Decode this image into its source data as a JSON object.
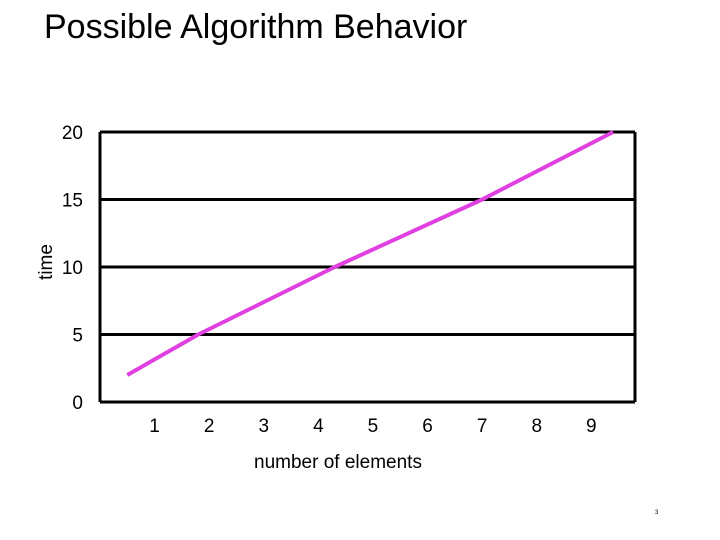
{
  "slide": {
    "title": "Possible Algorithm Behavior",
    "number": "3"
  },
  "chart_data": {
    "type": "line",
    "title": "",
    "xlabel": "number of elements",
    "ylabel": "time",
    "x_ticks": [
      "1",
      "2",
      "3",
      "4",
      "5",
      "6",
      "7",
      "8",
      "9"
    ],
    "y_ticks": [
      "0",
      "5",
      "10",
      "15",
      "20"
    ],
    "xlim": [
      0,
      9.8
    ],
    "ylim": [
      0,
      20
    ],
    "grid": true,
    "series": [
      {
        "color": "#e040e0",
        "x": [
          0.5,
          1.8,
          4.3,
          7.0,
          9.4
        ],
        "y": [
          2,
          5,
          10,
          15,
          20
        ]
      }
    ]
  }
}
